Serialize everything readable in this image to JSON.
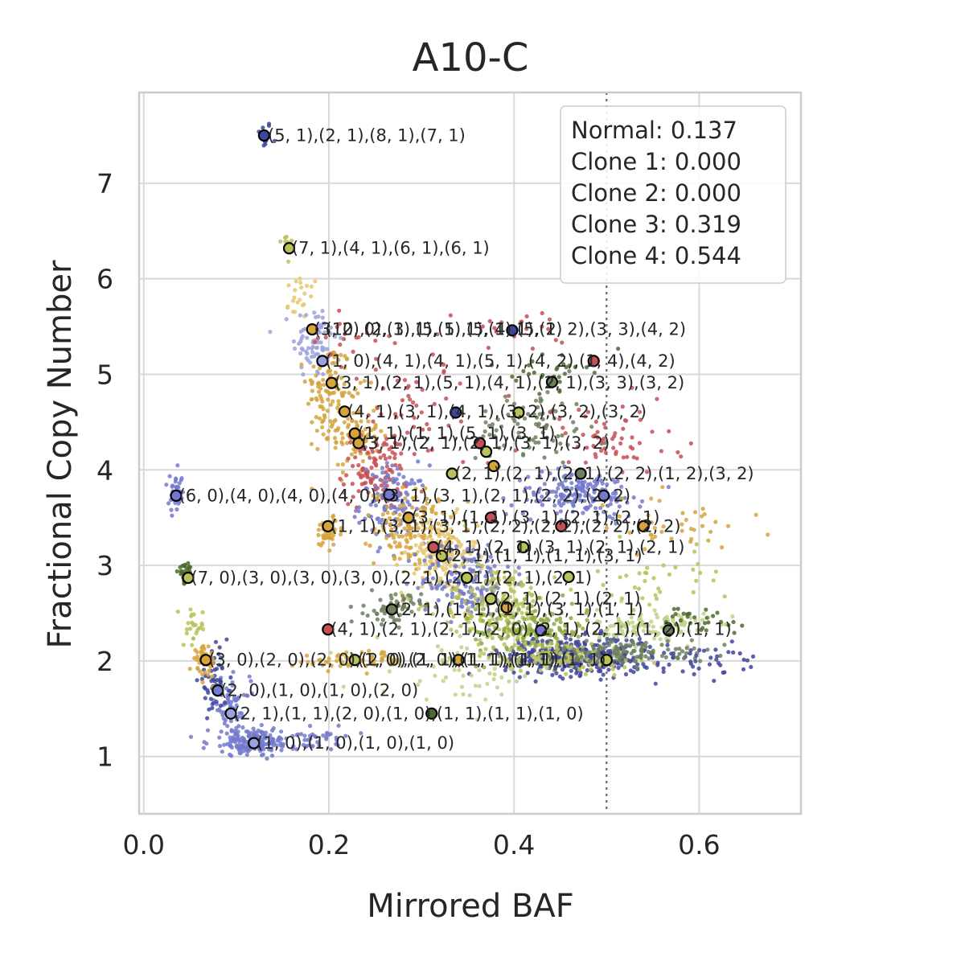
{
  "chart_data": {
    "type": "scatter",
    "title": "A10-C",
    "xlabel": "Mirrored BAF",
    "ylabel": "Fractional Copy Number",
    "xlim": [
      -0.005,
      0.71
    ],
    "ylim": [
      0.4,
      7.95
    ],
    "xticks": [
      0.0,
      0.2,
      0.4,
      0.6
    ],
    "xtick_labels": [
      "0.0",
      "0.2",
      "0.4",
      "0.6"
    ],
    "yticks": [
      1,
      2,
      3,
      4,
      5,
      6,
      7
    ],
    "ytick_labels": [
      "1",
      "2",
      "3",
      "4",
      "5",
      "6",
      "7"
    ],
    "grid": true,
    "reference_line": {
      "x": 0.5,
      "style": "dotted"
    },
    "legend": {
      "placement": "top-right",
      "entries": [
        "Normal: 0.137",
        "Clone 1: 0.000",
        "Clone 2: 0.000",
        "Clone 3: 0.319",
        "Clone 4: 0.544"
      ]
    },
    "palette": [
      "#3f479a",
      "#7379cc",
      "#9ea2dc",
      "#b9c15a",
      "#8ea843",
      "#d5a53c",
      "#e5c86f",
      "#c54f56",
      "#6d7f5e",
      "#4e6a30",
      "#bfd18a"
    ],
    "clusters": [
      {
        "x": 0.13,
        "y": 7.5,
        "sx": 0.004,
        "sy": 0.08,
        "n": 12,
        "c": 0
      },
      {
        "x": 0.155,
        "y": 6.35,
        "sx": 0.004,
        "sy": 0.1,
        "n": 12,
        "c": 3
      },
      {
        "x": 0.17,
        "y": 5.8,
        "sx": 0.01,
        "sy": 0.12,
        "n": 22,
        "c": 6
      },
      {
        "x": 0.185,
        "y": 5.35,
        "sx": 0.012,
        "sy": 0.2,
        "n": 80,
        "c": 2
      },
      {
        "x": 0.2,
        "y": 4.85,
        "sx": 0.012,
        "sy": 0.25,
        "n": 90,
        "c": 5
      },
      {
        "x": 0.225,
        "y": 4.4,
        "sx": 0.015,
        "sy": 0.22,
        "n": 90,
        "c": 5
      },
      {
        "x": 0.25,
        "y": 4.0,
        "sx": 0.018,
        "sy": 0.2,
        "n": 110,
        "c": 7
      },
      {
        "x": 0.27,
        "y": 3.65,
        "sx": 0.018,
        "sy": 0.2,
        "n": 110,
        "c": 1
      },
      {
        "x": 0.29,
        "y": 3.4,
        "sx": 0.02,
        "sy": 0.2,
        "n": 130,
        "c": 5
      },
      {
        "x": 0.32,
        "y": 3.1,
        "sx": 0.02,
        "sy": 0.2,
        "n": 150,
        "c": 6
      },
      {
        "x": 0.35,
        "y": 2.85,
        "sx": 0.025,
        "sy": 0.2,
        "n": 170,
        "c": 1
      },
      {
        "x": 0.38,
        "y": 2.6,
        "sx": 0.03,
        "sy": 0.2,
        "n": 180,
        "c": 3
      },
      {
        "x": 0.42,
        "y": 2.3,
        "sx": 0.03,
        "sy": 0.15,
        "n": 190,
        "c": 4
      },
      {
        "x": 0.47,
        "y": 2.05,
        "sx": 0.04,
        "sy": 0.1,
        "n": 360,
        "c": 0
      },
      {
        "x": 0.45,
        "y": 2.05,
        "sx": 0.04,
        "sy": 0.08,
        "n": 120,
        "c": 3
      },
      {
        "x": 0.55,
        "y": 2.35,
        "sx": 0.03,
        "sy": 0.1,
        "n": 120,
        "c": 10
      },
      {
        "x": 0.53,
        "y": 2.1,
        "sx": 0.04,
        "sy": 0.06,
        "n": 100,
        "c": 8
      },
      {
        "x": 0.47,
        "y": 3.75,
        "sx": 0.035,
        "sy": 0.12,
        "n": 170,
        "c": 1
      },
      {
        "x": 0.42,
        "y": 4.45,
        "sx": 0.03,
        "sy": 0.2,
        "n": 80,
        "c": 8
      },
      {
        "x": 0.44,
        "y": 5.05,
        "sx": 0.02,
        "sy": 0.1,
        "n": 30,
        "c": 9
      },
      {
        "x": 0.5,
        "y": 4.3,
        "sx": 0.04,
        "sy": 0.2,
        "n": 60,
        "c": 7
      },
      {
        "x": 0.3,
        "y": 4.6,
        "sx": 0.04,
        "sy": 0.3,
        "n": 45,
        "c": 7
      },
      {
        "x": 0.27,
        "y": 2.55,
        "sx": 0.015,
        "sy": 0.08,
        "n": 60,
        "c": 8
      },
      {
        "x": 0.2,
        "y": 3.35,
        "sx": 0.008,
        "sy": 0.08,
        "n": 45,
        "c": 5
      },
      {
        "x": 0.19,
        "y": 1.2,
        "sx": 0.02,
        "sy": 0.06,
        "n": 30,
        "c": 1
      },
      {
        "x": 0.12,
        "y": 1.15,
        "sx": 0.025,
        "sy": 0.07,
        "n": 170,
        "c": 1
      },
      {
        "x": 0.095,
        "y": 1.5,
        "sx": 0.01,
        "sy": 0.15,
        "n": 70,
        "c": 1
      },
      {
        "x": 0.075,
        "y": 1.8,
        "sx": 0.008,
        "sy": 0.15,
        "n": 50,
        "c": 0
      },
      {
        "x": 0.065,
        "y": 2.0,
        "sx": 0.006,
        "sy": 0.08,
        "n": 50,
        "c": 5
      },
      {
        "x": 0.055,
        "y": 2.35,
        "sx": 0.006,
        "sy": 0.1,
        "n": 25,
        "c": 3
      },
      {
        "x": 0.045,
        "y": 2.9,
        "sx": 0.004,
        "sy": 0.05,
        "n": 45,
        "c": 9
      },
      {
        "x": 0.035,
        "y": 3.75,
        "sx": 0.004,
        "sy": 0.1,
        "n": 35,
        "c": 1
      },
      {
        "x": 0.23,
        "y": 2.0,
        "sx": 0.03,
        "sy": 0.05,
        "n": 60,
        "c": 5
      },
      {
        "x": 0.35,
        "y": 1.9,
        "sx": 0.05,
        "sy": 0.15,
        "n": 60,
        "c": 10
      },
      {
        "x": 0.6,
        "y": 2.0,
        "sx": 0.04,
        "sy": 0.08,
        "n": 40,
        "c": 0
      },
      {
        "x": 0.57,
        "y": 3.4,
        "sx": 0.04,
        "sy": 0.15,
        "n": 40,
        "c": 5
      },
      {
        "x": 0.55,
        "y": 2.85,
        "sx": 0.04,
        "sy": 0.15,
        "n": 40,
        "c": 3
      },
      {
        "x": 0.6,
        "y": 2.4,
        "sx": 0.02,
        "sy": 0.08,
        "n": 30,
        "c": 9
      },
      {
        "x": 0.4,
        "y": 5.5,
        "sx": 0.03,
        "sy": 0.1,
        "n": 20,
        "c": 7
      },
      {
        "x": 0.22,
        "y": 5.4,
        "sx": 0.03,
        "sy": 0.1,
        "n": 20,
        "c": 7
      }
    ],
    "centroids": [
      {
        "x": 0.13,
        "y": 7.5,
        "c": "#3f479a"
      },
      {
        "x": 0.157,
        "y": 6.32,
        "c": "#b9c15a"
      },
      {
        "x": 0.182,
        "y": 5.47,
        "c": "#d5a53c"
      },
      {
        "x": 0.193,
        "y": 5.14,
        "c": "#9ea2dc"
      },
      {
        "x": 0.203,
        "y": 4.91,
        "c": "#d5a53c"
      },
      {
        "x": 0.217,
        "y": 4.61,
        "c": "#d5a53c"
      },
      {
        "x": 0.228,
        "y": 4.38,
        "c": "#d5a53c"
      },
      {
        "x": 0.232,
        "y": 4.28,
        "c": "#d5a53c"
      },
      {
        "x": 0.035,
        "y": 3.73,
        "c": "#7379cc"
      },
      {
        "x": 0.265,
        "y": 3.74,
        "c": "#7379cc"
      },
      {
        "x": 0.199,
        "y": 3.41,
        "c": "#d5a53c"
      },
      {
        "x": 0.286,
        "y": 3.5,
        "c": "#d5a53c"
      },
      {
        "x": 0.048,
        "y": 2.87,
        "c": "#b9c15a"
      },
      {
        "x": 0.268,
        "y": 2.54,
        "c": "#6d7f5e"
      },
      {
        "x": 0.199,
        "y": 2.33,
        "c": "#c54f56"
      },
      {
        "x": 0.067,
        "y": 2.01,
        "c": "#d5a53c"
      },
      {
        "x": 0.228,
        "y": 2.01,
        "c": "#b9c15a"
      },
      {
        "x": 0.08,
        "y": 1.69,
        "c": "#7379cc"
      },
      {
        "x": 0.094,
        "y": 1.45,
        "c": "#9ea2dc"
      },
      {
        "x": 0.119,
        "y": 1.14,
        "c": "#9ea2dc"
      },
      {
        "x": 0.311,
        "y": 1.45,
        "c": "#4e6a30"
      },
      {
        "x": 0.34,
        "y": 2.01,
        "c": "#d5a53c"
      },
      {
        "x": 0.313,
        "y": 3.19,
        "c": "#c54f56"
      },
      {
        "x": 0.322,
        "y": 3.1,
        "c": "#b9c15a"
      },
      {
        "x": 0.349,
        "y": 2.87,
        "c": "#b9c15a"
      },
      {
        "x": 0.375,
        "y": 2.65,
        "c": "#b9c15a"
      },
      {
        "x": 0.392,
        "y": 2.56,
        "c": "#d5a53c"
      },
      {
        "x": 0.429,
        "y": 2.32,
        "c": "#7379cc"
      },
      {
        "x": 0.363,
        "y": 4.28,
        "c": "#c54f56"
      },
      {
        "x": 0.37,
        "y": 4.19,
        "c": "#b9c15a"
      },
      {
        "x": 0.333,
        "y": 3.96,
        "c": "#b9c15a"
      },
      {
        "x": 0.378,
        "y": 4.04,
        "c": "#d5a53c"
      },
      {
        "x": 0.337,
        "y": 4.6,
        "c": "#3f479a"
      },
      {
        "x": 0.398,
        "y": 5.46,
        "c": "#3f479a"
      },
      {
        "x": 0.486,
        "y": 5.14,
        "c": "#c54f56"
      },
      {
        "x": 0.441,
        "y": 4.92,
        "c": "#6d7f5e"
      },
      {
        "x": 0.405,
        "y": 4.6,
        "c": "#b9c15a"
      },
      {
        "x": 0.472,
        "y": 3.96,
        "c": "#6d7f5e"
      },
      {
        "x": 0.497,
        "y": 3.73,
        "c": "#7379cc"
      },
      {
        "x": 0.375,
        "y": 3.5,
        "c": "#c54f56"
      },
      {
        "x": 0.451,
        "y": 3.41,
        "c": "#c54f56"
      },
      {
        "x": 0.54,
        "y": 3.41,
        "c": "#d5a53c"
      },
      {
        "x": 0.41,
        "y": 3.19,
        "c": "#b9c15a"
      },
      {
        "x": 0.459,
        "y": 2.88,
        "c": "#b9c15a"
      },
      {
        "x": 0.5,
        "y": 2.01,
        "c": "#b9c15a"
      },
      {
        "x": 0.567,
        "y": 2.32,
        "c": "#6d7f5e"
      }
    ],
    "annotations": [
      {
        "text": "(5, 1),(2, 1),(8, 1),(7, 1)",
        "x": 0.134,
        "y": 7.5
      },
      {
        "text": "(7, 1),(4, 1),(6, 1),(6, 1)",
        "x": 0.16,
        "y": 6.32
      },
      {
        "text": "(3, 2),(2, 1),(5, 1),(5, 1),(5, 1)",
        "x": 0.184,
        "y": 5.47
      },
      {
        "text": "(10, 0),(3, 1),(5, 1),(4, 1),(2, 2),(3, 3),(4, 2)",
        "x": 0.196,
        "y": 5.47
      },
      {
        "text": "(1, 0),(4, 1),(4, 1),(5, 1),(4, 2),(1, 4),(4, 2)",
        "x": 0.196,
        "y": 5.14
      },
      {
        "text": "(3, 1),(2, 1),(5, 1),(4, 1),(2, 1),(3, 3),(3, 2)",
        "x": 0.206,
        "y": 4.91
      },
      {
        "text": "(4, 1),(3, 1),(4, 1),(3, 2),(3, 2),(3, 2)",
        "x": 0.22,
        "y": 4.61
      },
      {
        "text": "(1, 1),(1, 1),(5, 1),(3, 1)",
        "x": 0.231,
        "y": 4.38
      },
      {
        "text": "(3, 1),(2, 1),(2, 1),(3, 1),(3, 2)",
        "x": 0.235,
        "y": 4.28
      },
      {
        "text": "(2, 1),(2, 1),(2, 1),(2, 2),(1, 2),(3, 2)",
        "x": 0.336,
        "y": 3.96
      },
      {
        "text": "(6, 0),(4, 0),(4, 0),(4, 0),(3, 1),(3, 1),(2, 1),(2, 2),(2, 2)",
        "x": 0.038,
        "y": 3.73
      },
      {
        "text": "(1, 1),(3, 1),(3, 1),(2, 2),(2, 2),(2, 2),(2, 2)",
        "x": 0.202,
        "y": 3.41
      },
      {
        "text": "(3, 1),(1, 1),(3, 1),(2, 1),(2, 1)",
        "x": 0.289,
        "y": 3.5
      },
      {
        "text": "(4, 1),(2, 1),(3, 1),(2, 1),(2, 1)",
        "x": 0.316,
        "y": 3.19
      },
      {
        "text": "(2, 1),(1, 1),(1, 1),(3, 1)",
        "x": 0.325,
        "y": 3.1
      },
      {
        "text": "(7, 0),(3, 0),(3, 0),(3, 0),(2, 1),(2, 1),(2, 1),(2, 1)",
        "x": 0.051,
        "y": 2.87
      },
      {
        "text": "(2, 1),(1, 1),(1, 1),(3, 1),(1, 1)",
        "x": 0.271,
        "y": 2.54
      },
      {
        "text": "(2, 1),(2, 1),(2, 1)",
        "x": 0.378,
        "y": 2.65
      },
      {
        "text": "(4, 1),(2, 1),(2, 1),(2, 0),(2, 1),(2, 1),(1, 2),(1, 1)",
        "x": 0.202,
        "y": 2.33
      },
      {
        "text": "(3, 0),(2, 0),(2, 0),(2, 0),(1, 1),(1, 1),(1, 1)",
        "x": 0.07,
        "y": 2.01
      },
      {
        "text": "(1, 0),(2, 0),(1, 1),(1, 1),(1, 1)",
        "x": 0.231,
        "y": 2.01
      },
      {
        "text": "(2, 0),(1, 0),(1, 0),(2, 0)",
        "x": 0.083,
        "y": 1.69
      },
      {
        "text": "(2, 1),(1, 1),(2, 0),(1, 0),(1, 1),(1, 1),(1, 0)",
        "x": 0.097,
        "y": 1.45
      },
      {
        "text": "(1, 0),(1, 0),(1, 0),(1, 0)",
        "x": 0.122,
        "y": 1.14
      }
    ]
  }
}
